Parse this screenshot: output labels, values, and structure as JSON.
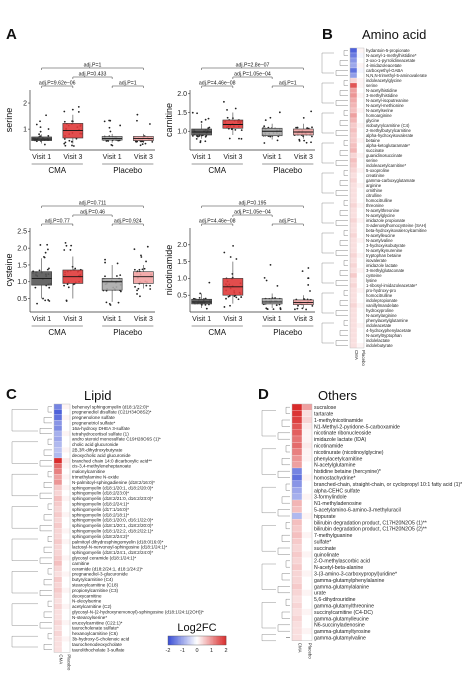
{
  "panels": {
    "A": "A",
    "B": "B",
    "C": "C",
    "D": "D"
  },
  "titles": {
    "B": "Amino acid",
    "C": "Lipid",
    "D": "Others"
  },
  "colors": {
    "visit1": "#555555",
    "visit3_cma": "#e03a3a",
    "visit1_placebo": "#aaaaaa",
    "visit3_placebo": "#f2a3a3",
    "neg": "#3a4fd6",
    "pos": "#d92b2b"
  },
  "colorbar": {
    "label": "Log2FC",
    "ticks": [
      "-2",
      "-1",
      "0",
      "1",
      "2"
    ]
  },
  "heat_columns": [
    "CMA",
    "Placebo"
  ],
  "chart_data": [
    {
      "type": "box",
      "ylabel": "serine",
      "categories": [
        "Visit 1",
        "Visit 3",
        "Visit 1",
        "Visit 3"
      ],
      "groups": [
        "CMA",
        "Placebo"
      ],
      "boxes": [
        {
          "q1": 0.56,
          "med": 0.62,
          "q3": 0.7,
          "lo": 0.45,
          "hi": 0.8
        },
        {
          "q1": 0.66,
          "med": 0.95,
          "q3": 1.22,
          "lo": 0.45,
          "hi": 1.55
        },
        {
          "q1": 0.58,
          "med": 0.64,
          "q3": 0.72,
          "lo": 0.48,
          "hi": 0.82
        },
        {
          "q1": 0.56,
          "med": 0.64,
          "q3": 0.72,
          "lo": 0.48,
          "hi": 0.82
        }
      ],
      "ylim": [
        0.2,
        2.5
      ],
      "yticks": [
        "1",
        "2"
      ],
      "pvalues": [
        "adj.P=9.62e−06",
        "adj.P=1",
        "adj.P=0.433",
        "adj.P=1"
      ]
    },
    {
      "type": "box",
      "ylabel": "carnitine",
      "categories": [
        "Visit 1",
        "Visit 3",
        "Visit 1",
        "Visit 3"
      ],
      "groups": [
        "CMA",
        "Placebo"
      ],
      "boxes": [
        {
          "q1": 0.9,
          "med": 0.98,
          "q3": 1.06,
          "lo": 0.8,
          "hi": 1.2
        },
        {
          "q1": 1.08,
          "med": 1.18,
          "q3": 1.3,
          "lo": 0.9,
          "hi": 1.5
        },
        {
          "q1": 0.88,
          "med": 1.0,
          "q3": 1.08,
          "lo": 0.78,
          "hi": 1.2
        },
        {
          "q1": 0.9,
          "med": 0.98,
          "q3": 1.06,
          "lo": 0.8,
          "hi": 1.2
        }
      ],
      "ylim": [
        0.5,
        2.1
      ],
      "yticks": [
        "1.0",
        "1.5",
        "2.0"
      ],
      "pvalues": [
        "adj.P=4.46e−08",
        "adj.P=1",
        "adj.P=1.05e−04",
        "adj.P=2.8e−07"
      ]
    },
    {
      "type": "box",
      "ylabel": "cysteine",
      "categories": [
        "Visit 1",
        "Visit 3",
        "Visit 1",
        "Visit 3"
      ],
      "groups": [
        "CMA",
        "Placebo"
      ],
      "boxes": [
        {
          "q1": 0.9,
          "med": 1.1,
          "q3": 1.3,
          "lo": 0.5,
          "hi": 1.7
        },
        {
          "q1": 0.95,
          "med": 1.15,
          "q3": 1.35,
          "lo": 0.5,
          "hi": 1.75
        },
        {
          "q1": 0.75,
          "med": 1.0,
          "q3": 1.1,
          "lo": 0.4,
          "hi": 1.5
        },
        {
          "q1": 0.95,
          "med": 1.15,
          "q3": 1.3,
          "lo": 0.8,
          "hi": 1.5
        }
      ],
      "ylim": [
        0.1,
        2.6
      ],
      "yticks": [
        "0.5",
        "1.0",
        "1.5",
        "2.0",
        "2.5"
      ],
      "pvalues": [
        "adj.P=0.77",
        "adj.P=0.924",
        "adj.P=0.46",
        "adj.P=0.711"
      ]
    },
    {
      "type": "box",
      "ylabel": "nicotinamide",
      "categories": [
        "Visit 1",
        "Visit 3",
        "Visit 1",
        "Visit 3"
      ],
      "groups": [
        "CMA",
        "Placebo"
      ],
      "boxes": [
        {
          "q1": 0.24,
          "med": 0.3,
          "q3": 0.38,
          "lo": 0.12,
          "hi": 0.55
        },
        {
          "q1": 0.5,
          "med": 0.75,
          "q3": 1.0,
          "lo": 0.25,
          "hi": 1.5
        },
        {
          "q1": 0.24,
          "med": 0.3,
          "q3": 0.4,
          "lo": 0.12,
          "hi": 0.55
        },
        {
          "q1": 0.22,
          "med": 0.28,
          "q3": 0.36,
          "lo": 0.12,
          "hi": 0.5
        }
      ],
      "ylim": [
        0.0,
        2.5
      ],
      "yticks": [
        "0.5",
        "1.0",
        "1.5",
        "2.0"
      ],
      "pvalues": [
        "adj.P=4.46e−08",
        "adj.P=1",
        "adj.P=1.05e−04",
        "adj.P=0.195"
      ]
    },
    {
      "type": "heatmap",
      "columns": [
        "CMA",
        "Placebo"
      ],
      "rows": [
        "hydantoin-5-propionate",
        "N-acetyl-1-methylhistidine*",
        "2-oxo-1-pyrrolidineacetate",
        "4-imidazoleacetate",
        "carboxyethyl-GABA",
        "N,N,N-trimethyl-5-aminovalerate",
        "indoleacetylglycine",
        "serine",
        "N-acetylhistidine",
        "3-methylhistidine",
        "N-acetyl-isoputreanine",
        "N-acetyl-methionine",
        "N-acetylserine",
        "homoarginine",
        "glycine",
        "isobutyrylcarnitine (C4)",
        "2-methylbutyrylcarnitine",
        "alpha-hydroxyisovalerate",
        "betaine",
        "alpha-ketoglutaramate*",
        "succinate",
        "guanidinosuccinate",
        "serine",
        "indoleacetylcarnitine*",
        "5-oxoproline",
        "creatinine",
        "gamma-carboxyglutamate",
        "arginine",
        "ornithine",
        "citrulline",
        "homocitrulline",
        "threonine",
        "N-acetylthreonine",
        "N-acetylglycine",
        "imidazole propionate",
        "S-adenosylhomocysteine (SAH)",
        "beta-hydroxyisovaleroylcarnitine",
        "N-acetylleucine",
        "N-acetylvaline",
        "3-hydroxyisobutyrate",
        "N-acetylkynurenine",
        "tryptophan betaine",
        "isovalerate",
        "imidazole lactate",
        "3-methylglutaconate",
        "cysteine",
        "lysine",
        "1-ribosyl-imidazoleacetate*",
        "pro-hydroxy-pro",
        "homocitrulline",
        "indolepropionate",
        "vanillylmandelate",
        "hydroxyproline",
        "N-acetylarginine",
        "phenylacetylglutamine",
        "indoleacetate",
        "4-hydroxyphenylacetate",
        "N-acetyltryptophan",
        "indolelactate",
        "indolebutyrate"
      ],
      "values_cma": [
        -1.8,
        -1.5,
        -1.2,
        -1.0,
        -1.6,
        -1.1,
        0.4,
        1.6,
        0.9,
        1.0,
        0.8,
        0.7,
        0.6,
        0.9,
        0.7,
        0.5,
        0.6,
        0.5,
        0.5,
        0.6,
        0.7,
        0.4,
        0.6,
        0.5,
        0.4,
        0.3,
        0.4,
        0.3,
        0.3,
        0.3,
        0.3,
        0.4,
        0.3,
        0.3,
        0.4,
        0.3,
        0.3,
        0.4,
        0.3,
        0.3,
        0.3,
        0.4,
        0.3,
        0.4,
        0.3,
        0.5,
        0.3,
        0.4,
        0.3,
        0.3,
        0.3,
        0.4,
        0.3,
        0.3,
        0.3,
        0.3,
        0.3,
        0.3,
        0.3,
        0.3
      ],
      "values_placebo": [
        0.1,
        -0.1,
        0.0,
        0.1,
        -0.1,
        0.0,
        0.1,
        0.1,
        0.0,
        0.1,
        0.0,
        0.0,
        0.1,
        0.0,
        0.0,
        0.1,
        0.0,
        0.0,
        0.1,
        0.0,
        0.0,
        0.1,
        0.0,
        0.0,
        0.1,
        0.0,
        0.0,
        0.1,
        0.0,
        0.0,
        0.0,
        0.1,
        0.0,
        0.0,
        0.1,
        0.0,
        0.0,
        0.0,
        0.1,
        0.0,
        0.0,
        0.1,
        0.0,
        0.0,
        0.1,
        0.0,
        0.0,
        0.0,
        0.1,
        0.0,
        0.0,
        0.1,
        0.0,
        0.0,
        0.0,
        0.1,
        0.0,
        0.0,
        0.0,
        0.1
      ],
      "title": "Amino acid"
    },
    {
      "type": "heatmap",
      "columns": [
        "CMA",
        "Placebo"
      ],
      "rows": [
        "behenoyl sphingomyelin (d18:1/22:0)*",
        "pregnenediol disulfate (C21H34O8S2)*",
        "pregnenolone sulfate",
        "pregnenetriol sulfate*",
        "16a-hydroxy DHEA 3-sulfate",
        "tetrahydrocortisol sulfate (1)",
        "andro steroid monosulfate C19H28O6S (1)*",
        "cholic acid glucuronide",
        "2B,3R-dihydroxybutyrate",
        "deoxycholic acid glucuronide",
        "branched chain 14:0 dicarboxylic acid**",
        "cis-3,4-methyleneheptanoate",
        "malonylcarnitine",
        "trimethylamine N-oxide",
        "N-palmitoyl-sphingadienine (d18:2/16:0)*",
        "sphingomyelin (d18:1/20:1, d18:2/20:0)*",
        "sphingomyelin (d18:2/23:0)*",
        "sphingomyelin (d18:2/21:0, d16:2/23:0)*",
        "sphingomyelin (d18:2/24:1)*",
        "sphingomyelin (d17:1/16:0)*",
        "sphingomyelin (d18:2/18:1)*",
        "sphingomyelin (d18:1/20:0, d16:1/22:0)*",
        "sphingomyelin (d18:1/20:1, d18:2/20:0)*",
        "sphingomyelin (d18:1/22:2, d18:2/22:1)*",
        "sphingomyelin (d18:2/24:2)*",
        "palmitoyl dihydrosphingomyelin (d18:0/16:0)*",
        "lactosyl-N-nervonoyl-sphingosine (d18:1/24:1)*",
        "sphingomyelin (d18:1/24:1, d18:2/24:0)*",
        "glycosyl ceramide (d18:1/24:1)*",
        "carnitine",
        "ceramide (d18:2/24:1, d18:1/24:2)*",
        "pregnanediol-3-glucuronide",
        "butyrylcarnitine (C4)",
        "stearoylcarnitine (C18)",
        "propionylcarnitine (C3)",
        "deoxycarnitine",
        "N-oleoylserine",
        "acetylcarnitine (C2)",
        "glycosyl-N-(2-hydroxynervonoyl)-sphingosine (d18:1/24:1(2OH))*",
        "N-stearoylserine*",
        "erucoylcarnitine (C22:1)*",
        "taurocholenate sulfate*",
        "hexanoylcarnitine (C6)",
        "3b-hydroxy-5-cholenoic acid",
        "taurochenodeoxycholate",
        "taurolithocholate 3-sulfate"
      ],
      "values_cma": [
        -1.4,
        -1.8,
        -1.6,
        -1.2,
        -1.3,
        -0.9,
        -1.0,
        -0.8,
        -0.7,
        -0.8,
        2.0,
        1.4,
        1.2,
        0.9,
        1.0,
        0.5,
        0.4,
        0.6,
        0.5,
        0.4,
        0.5,
        0.4,
        0.5,
        0.4,
        0.4,
        0.5,
        0.4,
        0.4,
        0.5,
        0.6,
        0.4,
        0.3,
        0.5,
        0.4,
        0.5,
        0.4,
        0.3,
        0.4,
        0.3,
        0.3,
        0.4,
        0.3,
        0.4,
        0.3,
        0.3,
        0.3
      ],
      "values_placebo": [
        0.1,
        0.0,
        0.1,
        0.0,
        0.0,
        0.1,
        0.0,
        0.0,
        0.1,
        0.0,
        0.2,
        0.1,
        0.0,
        0.1,
        0.0,
        0.1,
        0.0,
        0.1,
        0.0,
        0.0,
        0.1,
        0.0,
        0.0,
        0.1,
        0.0,
        0.1,
        0.0,
        0.0,
        0.1,
        0.0,
        0.0,
        0.1,
        0.0,
        0.0,
        0.1,
        0.0,
        0.0,
        0.1,
        0.0,
        0.0,
        0.1,
        0.0,
        0.0,
        0.1,
        0.0,
        0.0
      ],
      "title": "Lipid"
    },
    {
      "type": "heatmap",
      "columns": [
        "CMA",
        "Placebo"
      ],
      "rows": [
        "sucralose",
        "tartarate",
        "1-methylnicotinamide",
        "N1-Methyl-2-pyridone-5-carboxamide",
        "nicotinate ribonucleoside",
        "imidazole lactate (IDA)",
        "nicotinamide",
        "nicotinurate (nicotinoylglycine)",
        "phenylacetylcarnitine",
        "N-acetylglutamine",
        "histidine betaine (hercynine)*",
        "homostachydrine*",
        "branched-chain, straight-chain, or cyclopropyl 10:1 fatty acid (1)*",
        "alpha-CEHC sulfate",
        "3-formylindole",
        "N1-methyladenosine",
        "5-acetylamino-6-amino-3-methyluracil",
        "hippurate",
        "bilirubin degradation product, C17H20N2O5 (1)**",
        "bilirubin degradation product, C17H20N2O5 (2)**",
        "7-methylguanine",
        "sulfate*",
        "succinate",
        "quinolinate",
        "2-O-methylascorbic acid",
        "N-acetyl-beta-alanine",
        "3-(3-amino-3-carboxypropyl)uridine*",
        "gamma-glutamylphenylalanine",
        "gamma-glutamylalanine",
        "urate",
        "5,6-dihydrouridine",
        "gamma-glutamylthreonine",
        "succinylcarnitine (C4-DC)",
        "gamma-glutamylleucine",
        "N6-succinyladenosine",
        "gamma-glutamyltyrosine",
        "gamma-glutamylvaline"
      ],
      "values_cma": [
        2.0,
        1.9,
        1.8,
        1.6,
        1.5,
        1.3,
        1.4,
        1.2,
        1.0,
        0.9,
        -1.4,
        -1.6,
        -1.2,
        -1.0,
        -0.9,
        0.7,
        0.6,
        -0.8,
        0.6,
        0.5,
        0.6,
        0.5,
        0.4,
        0.5,
        0.4,
        0.5,
        0.4,
        0.4,
        0.5,
        0.4,
        0.3,
        0.4,
        0.3,
        0.4,
        0.3,
        0.3,
        0.3
      ],
      "values_placebo": [
        0.9,
        0.3,
        0.4,
        0.2,
        0.1,
        0.1,
        0.2,
        0.1,
        0.1,
        0.0,
        0.0,
        0.1,
        0.0,
        0.0,
        0.1,
        0.0,
        0.0,
        0.1,
        0.0,
        0.0,
        0.1,
        0.0,
        0.0,
        0.1,
        0.0,
        0.0,
        0.1,
        0.0,
        0.0,
        0.1,
        0.0,
        0.0,
        0.1,
        0.0,
        0.0,
        0.1,
        0.0
      ],
      "title": "Others"
    }
  ]
}
